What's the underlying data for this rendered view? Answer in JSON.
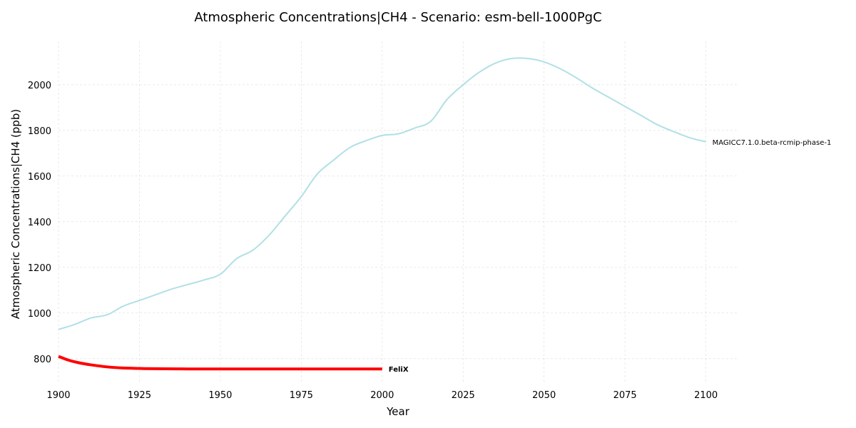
{
  "chart_data": {
    "type": "line",
    "title": "Atmospheric Concentrations|CH4 - Scenario: esm-bell-1000PgC",
    "xlabel": "Year",
    "ylabel": "Atmospheric Concentrations|CH4 (ppb)",
    "xlim": [
      1900,
      2110
    ],
    "ylim": [
      690,
      2190
    ],
    "xticks": [
      1900,
      1925,
      1950,
      1975,
      2000,
      2025,
      2050,
      2075,
      2100
    ],
    "yticks": [
      800,
      1000,
      1200,
      1400,
      1600,
      1800,
      2000
    ],
    "grid": true,
    "series": [
      {
        "name": "MAGICC7.1.0.beta-rcmip-phase-1",
        "color": "#b0e0e6",
        "x": [
          1900,
          1905,
          1910,
          1915,
          1920,
          1925,
          1930,
          1935,
          1940,
          1945,
          1950,
          1955,
          1960,
          1965,
          1970,
          1975,
          1980,
          1985,
          1990,
          1995,
          2000,
          2005,
          2010,
          2015,
          2020,
          2025,
          2030,
          2035,
          2040,
          2045,
          2050,
          2055,
          2060,
          2065,
          2070,
          2075,
          2080,
          2085,
          2090,
          2095,
          2100
        ],
        "y": [
          928,
          950,
          978,
          992,
          1030,
          1055,
          1080,
          1105,
          1125,
          1145,
          1170,
          1238,
          1275,
          1340,
          1425,
          1510,
          1610,
          1670,
          1725,
          1755,
          1778,
          1785,
          1810,
          1840,
          1935,
          2000,
          2055,
          2095,
          2115,
          2115,
          2100,
          2070,
          2030,
          1985,
          1945,
          1905,
          1865,
          1825,
          1795,
          1768,
          1750
        ]
      },
      {
        "name": "FeliX",
        "color": "#ff0000",
        "x": [
          1900,
          1903,
          1906,
          1910,
          1915,
          1920,
          1925,
          1930,
          1940,
          1950,
          1960,
          1970,
          1980,
          1990,
          2000
        ],
        "y": [
          810,
          794,
          783,
          773,
          764,
          759,
          757,
          756,
          755,
          755,
          755,
          755,
          755,
          755,
          755
        ]
      }
    ]
  }
}
